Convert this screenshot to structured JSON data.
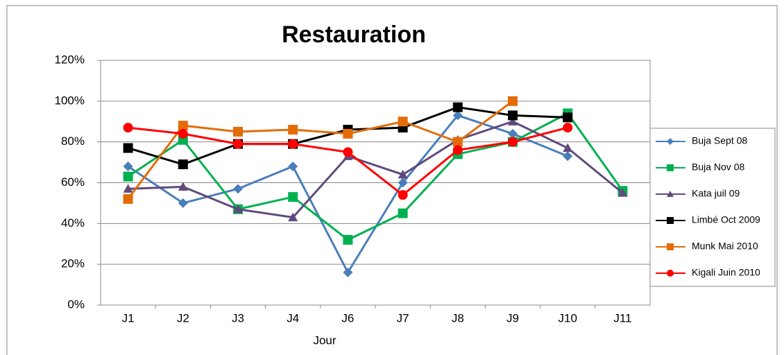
{
  "chart_data": {
    "type": "line",
    "title": "Restauration",
    "x_label": "Jour",
    "categories": [
      "J1",
      "J2",
      "J3",
      "J4",
      "J6",
      "J7",
      "J8",
      "J9",
      "J10",
      "J11"
    ],
    "ylim": [
      0,
      120
    ],
    "yticks": [
      {
        "value": 0,
        "label": "0%"
      },
      {
        "value": 20,
        "label": "20%"
      },
      {
        "value": 40,
        "label": "40%"
      },
      {
        "value": 60,
        "label": "60%"
      },
      {
        "value": 80,
        "label": "80%"
      },
      {
        "value": 100,
        "label": "100%"
      },
      {
        "value": 120,
        "label": "120%"
      }
    ],
    "grid": true,
    "legend": "right",
    "series": [
      {
        "name": "Buja Sept 08",
        "color": "#4a7ebb",
        "marker": "diamond",
        "values": [
          68,
          50,
          57,
          68,
          16,
          60,
          93,
          84,
          73,
          null
        ]
      },
      {
        "name": "Buja Nov 08",
        "color": "#00b050",
        "marker": "square",
        "values": [
          63,
          81,
          47,
          53,
          32,
          45,
          74,
          80,
          94,
          56
        ]
      },
      {
        "name": "Kata juil 09",
        "color": "#604a7b",
        "marker": "triangle",
        "values": [
          57,
          58,
          47,
          43,
          73,
          64,
          81,
          90,
          77,
          55
        ]
      },
      {
        "name": "Limbé Oct 2009",
        "color": "#000000",
        "marker": "square",
        "values": [
          77,
          69,
          79,
          79,
          86,
          87,
          97,
          93,
          92,
          null
        ]
      },
      {
        "name": "Munk Mai 2010",
        "color": "#e36c09",
        "marker": "square",
        "values": [
          52,
          88,
          85,
          86,
          84,
          90,
          80,
          100,
          null,
          null
        ]
      },
      {
        "name": "Kigali Juin 2010",
        "color": "#ff0000",
        "marker": "circle",
        "values": [
          87,
          84,
          79,
          79,
          75,
          54,
          76,
          80,
          87,
          null
        ]
      }
    ]
  }
}
